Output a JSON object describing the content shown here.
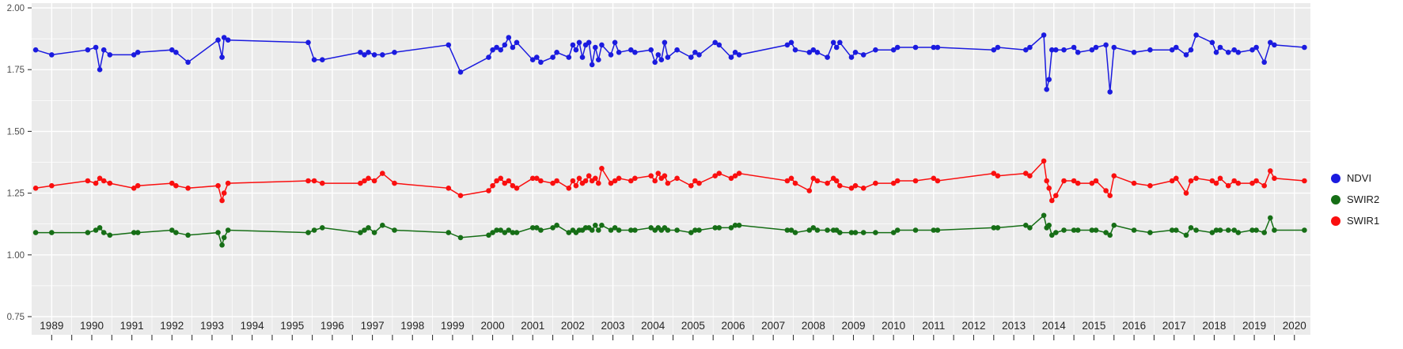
{
  "chart": {
    "panel_bg": "#EBEBEB",
    "grid_color": "#FFFFFF",
    "axis_text_color_y": "#4D4D4D",
    "axis_text_color_x": "#262626",
    "tick_color": "#333333"
  },
  "legend": {
    "position": "right",
    "items": [
      {
        "label": "NDVI",
        "color": "#1B1BDF"
      },
      {
        "label": "SWIR2",
        "color": "#166E16"
      },
      {
        "label": "SWIR1",
        "color": "#FA0F0F"
      }
    ]
  },
  "chart_data": {
    "type": "line",
    "title": "",
    "xlabel": "",
    "ylabel": "",
    "grid": true,
    "legend_position": "right",
    "ylim": [
      0.75,
      2.0
    ],
    "y_ticks": [
      0.75,
      1.0,
      1.25,
      1.5,
      1.75,
      2.0
    ],
    "y_tick_labels": [
      "0.75",
      "1.00",
      "1.25",
      "1.50",
      "1.75",
      "2.00"
    ],
    "x_ticks": [
      1989,
      1990,
      1991,
      1992,
      1993,
      1994,
      1995,
      1996,
      1997,
      1998,
      1999,
      2000,
      2001,
      2002,
      2003,
      2004,
      2005,
      2006,
      2007,
      2008,
      2009,
      2010,
      2011,
      2012,
      2013,
      2014,
      2015,
      2016,
      2017,
      2018,
      2019,
      2020
    ],
    "x": [
      1988.6,
      1989.0,
      1989.9,
      1990.1,
      1990.2,
      1990.3,
      1990.45,
      1991.05,
      1991.15,
      1992.0,
      1992.1,
      1992.4,
      1993.15,
      1993.25,
      1993.3,
      1993.4,
      1995.4,
      1995.55,
      1995.75,
      1996.7,
      1996.8,
      1996.9,
      1997.05,
      1997.25,
      1997.55,
      1998.9,
      1999.2,
      1999.9,
      2000.0,
      2000.1,
      2000.2,
      2000.3,
      2000.4,
      2000.5,
      2000.6,
      2001.0,
      2001.1,
      2001.2,
      2001.5,
      2001.6,
      2001.9,
      2002.0,
      2002.08,
      2002.16,
      2002.24,
      2002.32,
      2002.4,
      2002.48,
      2002.56,
      2002.64,
      2002.72,
      2002.95,
      2003.05,
      2003.15,
      2003.45,
      2003.55,
      2003.95,
      2004.05,
      2004.13,
      2004.21,
      2004.29,
      2004.37,
      2004.6,
      2004.95,
      2005.05,
      2005.15,
      2005.55,
      2005.65,
      2005.95,
      2006.05,
      2006.15,
      2007.35,
      2007.45,
      2007.55,
      2007.9,
      2008.0,
      2008.1,
      2008.35,
      2008.5,
      2008.58,
      2008.66,
      2008.95,
      2009.05,
      2009.25,
      2009.55,
      2010.0,
      2010.1,
      2010.55,
      2011.0,
      2011.1,
      2012.5,
      2012.6,
      2013.3,
      2013.4,
      2013.75,
      2013.82,
      2013.88,
      2013.95,
      2014.05,
      2014.25,
      2014.5,
      2014.6,
      2014.95,
      2015.05,
      2015.3,
      2015.4,
      2015.5,
      2016.0,
      2016.4,
      2016.95,
      2017.05,
      2017.3,
      2017.42,
      2017.55,
      2017.95,
      2018.05,
      2018.15,
      2018.35,
      2018.5,
      2018.6,
      2018.95,
      2019.05,
      2019.25,
      2019.4,
      2019.5,
      2020.25
    ],
    "series": [
      {
        "name": "NDVI",
        "color": "#1B1BDF",
        "values": [
          1.83,
          1.81,
          1.83,
          1.84,
          1.75,
          1.83,
          1.81,
          1.81,
          1.82,
          1.83,
          1.82,
          1.78,
          1.87,
          1.8,
          1.88,
          1.87,
          1.86,
          1.79,
          1.79,
          1.82,
          1.81,
          1.82,
          1.81,
          1.81,
          1.82,
          1.85,
          1.74,
          1.8,
          1.83,
          1.84,
          1.83,
          1.85,
          1.88,
          1.84,
          1.86,
          1.79,
          1.8,
          1.78,
          1.8,
          1.82,
          1.8,
          1.85,
          1.83,
          1.86,
          1.8,
          1.85,
          1.86,
          1.77,
          1.84,
          1.79,
          1.85,
          1.81,
          1.86,
          1.82,
          1.83,
          1.82,
          1.83,
          1.78,
          1.81,
          1.79,
          1.86,
          1.8,
          1.83,
          1.8,
          1.82,
          1.81,
          1.86,
          1.85,
          1.8,
          1.82,
          1.81,
          1.85,
          1.86,
          1.83,
          1.82,
          1.83,
          1.82,
          1.8,
          1.86,
          1.84,
          1.86,
          1.8,
          1.82,
          1.81,
          1.83,
          1.83,
          1.84,
          1.84,
          1.84,
          1.84,
          1.83,
          1.84,
          1.83,
          1.84,
          1.89,
          1.67,
          1.71,
          1.83,
          1.83,
          1.83,
          1.84,
          1.82,
          1.83,
          1.84,
          1.85,
          1.66,
          1.84,
          1.82,
          1.83,
          1.83,
          1.84,
          1.81,
          1.83,
          1.89,
          1.86,
          1.82,
          1.84,
          1.82,
          1.83,
          1.82,
          1.83,
          1.84,
          1.78,
          1.86,
          1.85,
          1.84
        ]
      },
      {
        "name": "SWIR1",
        "color": "#FA0F0F",
        "values": [
          1.27,
          1.28,
          1.3,
          1.29,
          1.31,
          1.3,
          1.29,
          1.27,
          1.28,
          1.29,
          1.28,
          1.27,
          1.28,
          1.22,
          1.25,
          1.29,
          1.3,
          1.3,
          1.29,
          1.29,
          1.3,
          1.31,
          1.3,
          1.33,
          1.29,
          1.27,
          1.24,
          1.26,
          1.28,
          1.3,
          1.31,
          1.29,
          1.3,
          1.28,
          1.27,
          1.31,
          1.31,
          1.3,
          1.29,
          1.3,
          1.27,
          1.3,
          1.28,
          1.31,
          1.29,
          1.3,
          1.32,
          1.3,
          1.31,
          1.29,
          1.35,
          1.29,
          1.3,
          1.31,
          1.3,
          1.31,
          1.32,
          1.3,
          1.33,
          1.31,
          1.32,
          1.29,
          1.31,
          1.28,
          1.3,
          1.29,
          1.32,
          1.33,
          1.31,
          1.32,
          1.33,
          1.3,
          1.31,
          1.29,
          1.26,
          1.31,
          1.3,
          1.29,
          1.31,
          1.3,
          1.28,
          1.27,
          1.28,
          1.27,
          1.29,
          1.29,
          1.3,
          1.3,
          1.31,
          1.3,
          1.33,
          1.32,
          1.33,
          1.32,
          1.38,
          1.3,
          1.27,
          1.22,
          1.24,
          1.3,
          1.3,
          1.29,
          1.29,
          1.3,
          1.26,
          1.24,
          1.32,
          1.29,
          1.28,
          1.3,
          1.31,
          1.25,
          1.3,
          1.31,
          1.3,
          1.29,
          1.31,
          1.28,
          1.3,
          1.29,
          1.29,
          1.3,
          1.28,
          1.34,
          1.31,
          1.3
        ]
      },
      {
        "name": "SWIR2",
        "color": "#166E16",
        "values": [
          1.09,
          1.09,
          1.09,
          1.1,
          1.11,
          1.09,
          1.08,
          1.09,
          1.09,
          1.1,
          1.09,
          1.08,
          1.09,
          1.04,
          1.07,
          1.1,
          1.09,
          1.1,
          1.11,
          1.09,
          1.1,
          1.11,
          1.09,
          1.12,
          1.1,
          1.09,
          1.07,
          1.08,
          1.09,
          1.1,
          1.1,
          1.09,
          1.1,
          1.09,
          1.09,
          1.11,
          1.11,
          1.1,
          1.11,
          1.12,
          1.09,
          1.1,
          1.09,
          1.1,
          1.1,
          1.11,
          1.11,
          1.1,
          1.12,
          1.1,
          1.12,
          1.1,
          1.11,
          1.1,
          1.1,
          1.1,
          1.11,
          1.1,
          1.11,
          1.1,
          1.11,
          1.1,
          1.1,
          1.09,
          1.1,
          1.1,
          1.11,
          1.11,
          1.11,
          1.12,
          1.12,
          1.1,
          1.1,
          1.09,
          1.1,
          1.11,
          1.1,
          1.1,
          1.1,
          1.1,
          1.09,
          1.09,
          1.09,
          1.09,
          1.09,
          1.09,
          1.1,
          1.1,
          1.1,
          1.1,
          1.11,
          1.11,
          1.12,
          1.11,
          1.16,
          1.11,
          1.12,
          1.08,
          1.09,
          1.1,
          1.1,
          1.1,
          1.1,
          1.1,
          1.09,
          1.08,
          1.12,
          1.1,
          1.09,
          1.1,
          1.1,
          1.08,
          1.11,
          1.1,
          1.09,
          1.1,
          1.1,
          1.1,
          1.1,
          1.09,
          1.1,
          1.1,
          1.09,
          1.15,
          1.1,
          1.1
        ]
      }
    ]
  }
}
